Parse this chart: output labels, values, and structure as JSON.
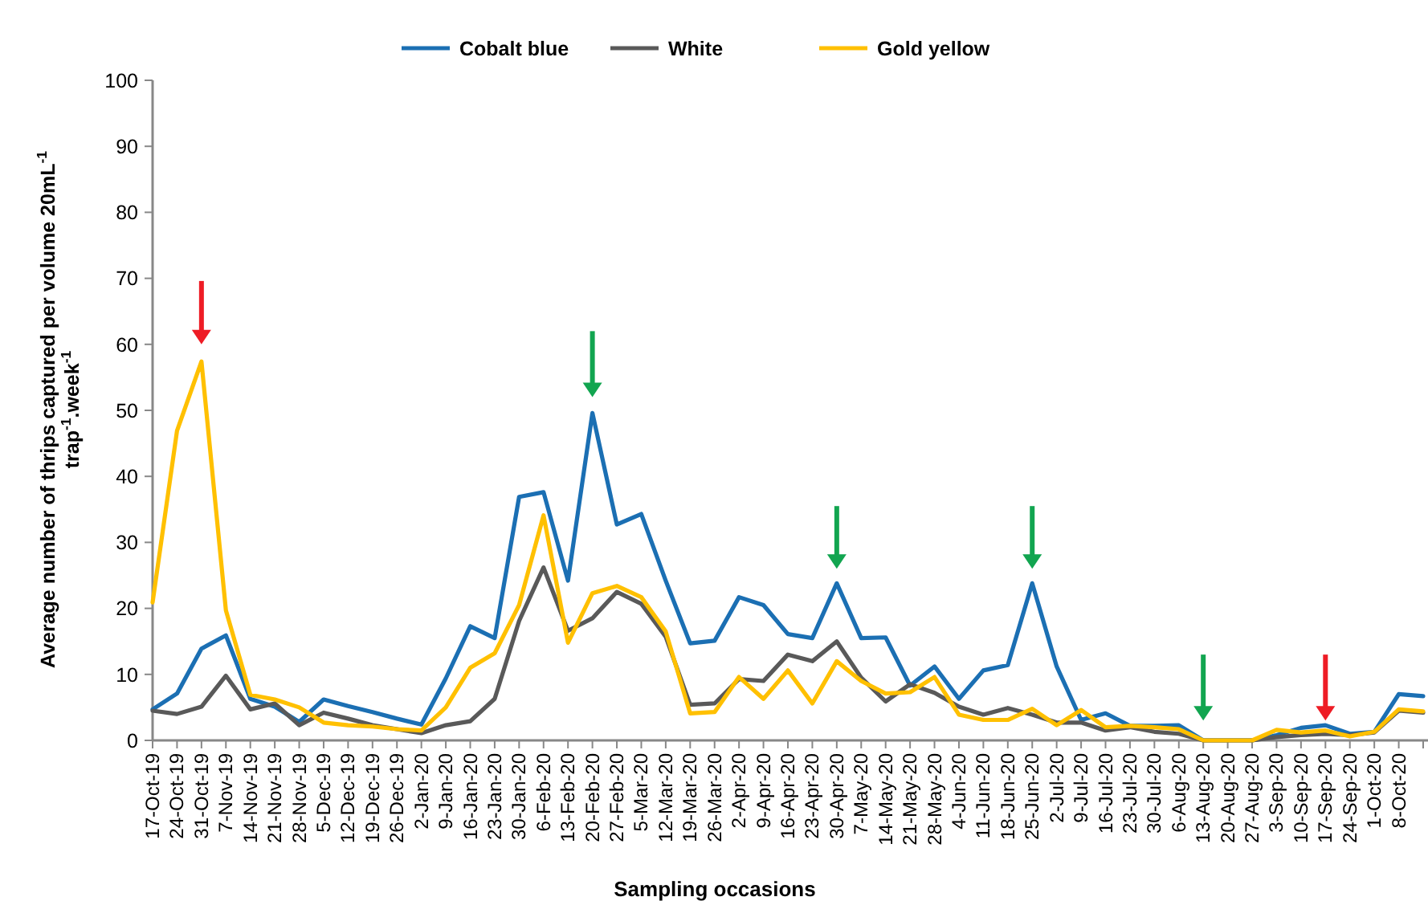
{
  "chart_data": {
    "type": "line",
    "xlabel": "Sampling occasions",
    "ylabel": "Average number of thrips captured per volume 20mL$^{-1}$ trap$^{-1}$.week$^{-1}$",
    "categories": [
      "17-Oct-19",
      "24-Oct-19",
      "31-Oct-19",
      "7-Nov-19",
      "14-Nov-19",
      "21-Nov-19",
      "28-Nov-19",
      "5-Dec-19",
      "12-Dec-19",
      "19-Dec-19",
      "26-Dec-19",
      "2-Jan-20",
      "9-Jan-20",
      "16-Jan-20",
      "23-Jan-20",
      "30-Jan-20",
      "6-Feb-20",
      "13-Feb-20",
      "20-Feb-20",
      "27-Feb-20",
      "5-Mar-20",
      "12-Mar-20",
      "19-Mar-20",
      "26-Mar-20",
      "2-Apr-20",
      "9-Apr-20",
      "16-Apr-20",
      "23-Apr-20",
      "30-Apr-20",
      "7-May-20",
      "14-May-20",
      "21-May-20",
      "28-May-20",
      "4-Jun-20",
      "11-Jun-20",
      "18-Jun-20",
      "25-Jun-20",
      "2-Jul-20",
      "9-Jul-20",
      "16-Jul-20",
      "23-Jul-20",
      "30-Jul-20",
      "6-Aug-20",
      "13-Aug-20",
      "20-Aug-20",
      "27-Aug-20",
      "3-Sep-20",
      "10-Sep-20",
      "17-Sep-20",
      "24-Sep-20",
      "1-Oct-20",
      "8-Oct-20",
      null
    ],
    "series": [
      {
        "name": "Cobalt blue",
        "color": "#1b6fb3",
        "values": [
          4.7,
          7.1,
          13.9,
          15.9,
          6.3,
          5.1,
          2.8,
          6.2,
          5.2,
          4.3,
          3.3,
          2.4,
          9.4,
          17.3,
          15.5,
          36.9,
          37.6,
          24.2,
          49.6,
          32.7,
          34.3,
          24.2,
          14.7,
          15.1,
          21.7,
          20.5,
          16.1,
          15.5,
          23.8,
          15.5,
          15.6,
          8.3,
          11.2,
          6.3,
          10.6,
          11.4,
          23.8,
          11.2,
          3.1,
          4.1,
          2.2,
          2.2,
          2.3,
          0,
          0,
          0,
          0.8,
          1.9,
          2.3,
          1.0,
          1.3,
          7.0,
          6.7
        ]
      },
      {
        "name": "White",
        "color": "#595959",
        "values": [
          4.5,
          4.0,
          5.1,
          9.8,
          4.7,
          5.6,
          2.3,
          4.2,
          3.3,
          2.3,
          1.7,
          1.1,
          2.3,
          2.9,
          6.3,
          18.1,
          26.2,
          16.6,
          18.5,
          22.5,
          20.7,
          15.7,
          5.4,
          5.6,
          9.3,
          9.0,
          13.0,
          12.0,
          15.0,
          9.5,
          5.9,
          8.5,
          7.2,
          5.1,
          3.9,
          4.9,
          3.9,
          2.7,
          2.7,
          1.5,
          2.0,
          1.3,
          1.0,
          0,
          0,
          0,
          0.5,
          0.8,
          1.0,
          0.8,
          1.2,
          4.5,
          4.2
        ]
      },
      {
        "name": "Gold yellow",
        "color": "#ffc000",
        "values": [
          20.9,
          46.9,
          57.4,
          19.7,
          6.9,
          6.2,
          5.0,
          2.7,
          2.3,
          2.1,
          1.7,
          1.5,
          5.0,
          11.0,
          13.2,
          20.5,
          34.1,
          14.8,
          22.3,
          23.4,
          21.7,
          16.5,
          4.1,
          4.3,
          9.6,
          6.3,
          10.6,
          5.6,
          12.0,
          9.0,
          7.1,
          7.3,
          9.6,
          3.9,
          3.1,
          3.1,
          4.8,
          2.3,
          4.6,
          2.0,
          2.2,
          2.0,
          1.7,
          0,
          0,
          0,
          1.6,
          1.2,
          1.5,
          0.6,
          1.3,
          4.7,
          4.4
        ]
      }
    ],
    "ylim": [
      0,
      100
    ],
    "yticks": [
      0,
      10,
      20,
      30,
      40,
      50,
      60,
      70,
      80,
      90,
      100
    ],
    "grid": false,
    "legend": "top",
    "marker": "none",
    "line_style": "solid"
  }
}
